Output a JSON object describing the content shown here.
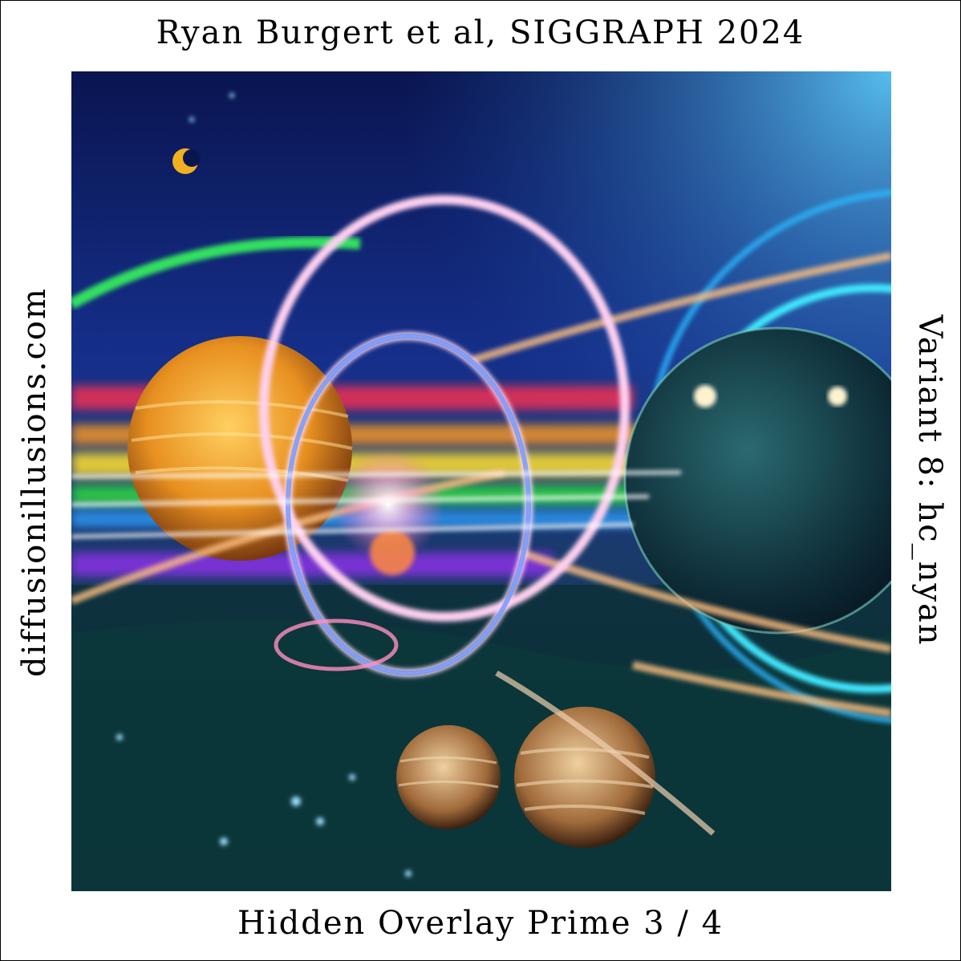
{
  "captions": {
    "top": "Ryan Burgert et al, SIGGRAPH 2024",
    "left": "diffusionillusions.com",
    "right": "Variant 8:  hc_nyan",
    "bottom": "Hidden Overlay Prime 3 / 4"
  }
}
